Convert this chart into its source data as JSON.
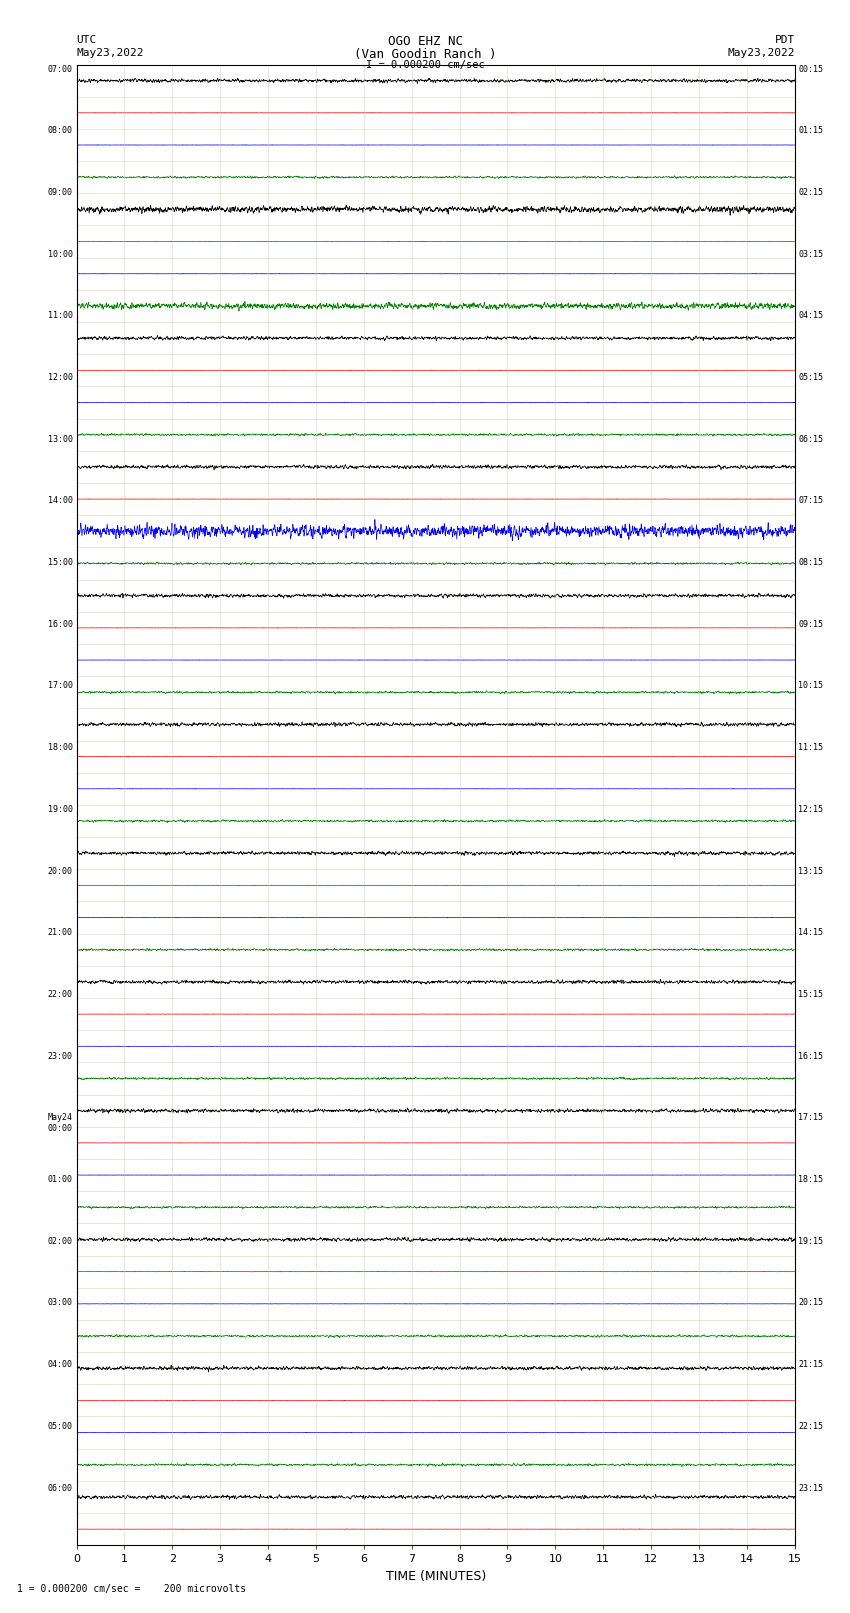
{
  "title_line1": "OGO EHZ NC",
  "title_line2": "(Van Goodin Ranch )",
  "title_line3": "I = 0.000200 cm/sec",
  "xlabel": "TIME (MINUTES)",
  "bottom_note": "1 = 0.000200 cm/sec =    200 microvolts",
  "xlim": [
    0,
    15
  ],
  "xticks": [
    0,
    1,
    2,
    3,
    4,
    5,
    6,
    7,
    8,
    9,
    10,
    11,
    12,
    13,
    14,
    15
  ],
  "fig_width": 8.5,
  "fig_height": 16.13,
  "dpi": 100,
  "bg_color": "#ffffff",
  "n_rows": 46,
  "utc_labels": [
    "07:00",
    "08:00",
    "09:00",
    "10:00",
    "11:00",
    "12:00",
    "13:00",
    "14:00",
    "15:00",
    "16:00",
    "17:00",
    "18:00",
    "19:00",
    "20:00",
    "21:00",
    "22:00",
    "23:00",
    "May24\n00:00",
    "01:00",
    "02:00",
    "03:00",
    "04:00",
    "05:00",
    "06:00"
  ],
  "pdt_labels": [
    "00:15",
    "01:15",
    "02:15",
    "03:15",
    "04:15",
    "05:15",
    "06:15",
    "07:15",
    "08:15",
    "09:15",
    "10:15",
    "11:15",
    "12:15",
    "13:15",
    "14:15",
    "15:15",
    "16:15",
    "17:15",
    "18:15",
    "19:15",
    "20:15",
    "21:15",
    "22:15",
    "23:15"
  ]
}
